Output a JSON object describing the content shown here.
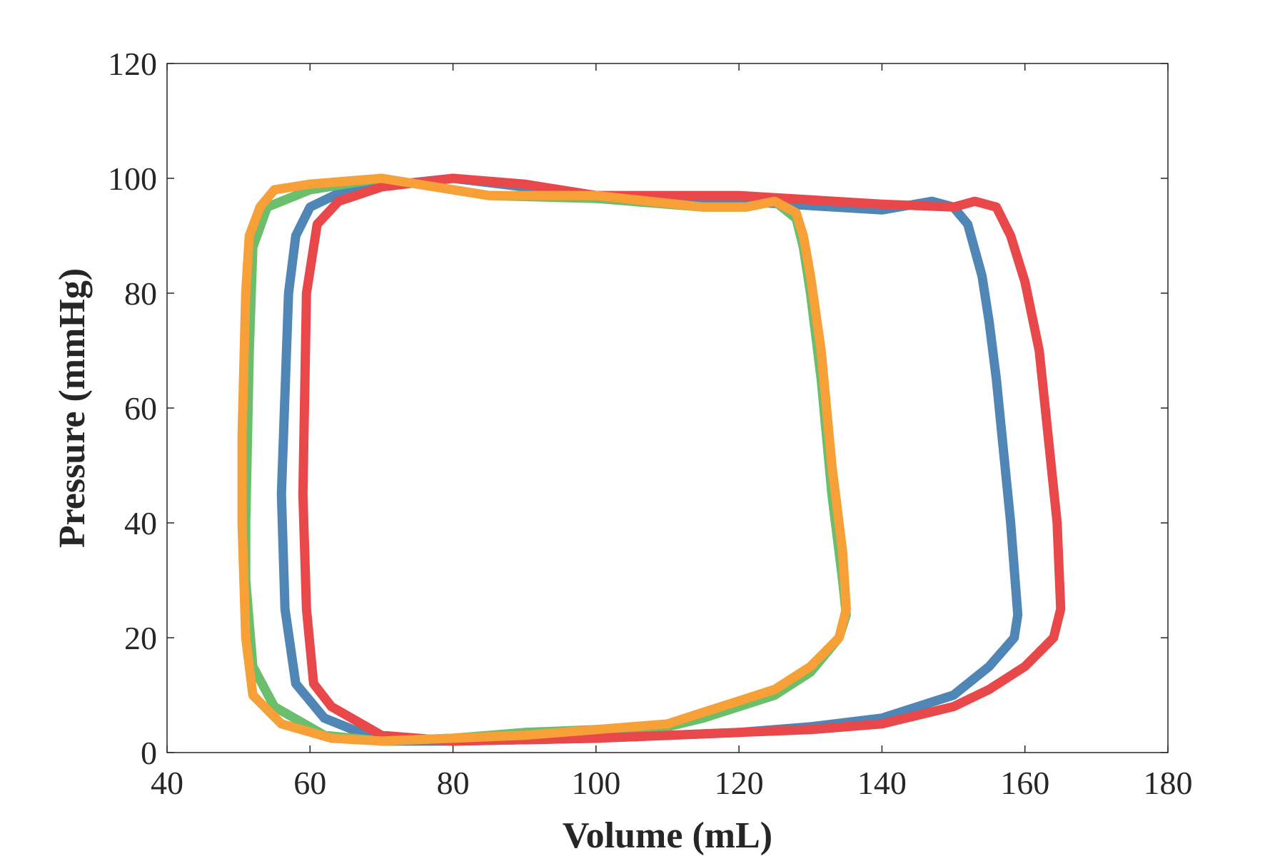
{
  "chart_data": {
    "type": "line",
    "title": "",
    "xlabel": "Volume (mL)",
    "ylabel": "Pressure (mmHg)",
    "xlim": [
      40,
      180
    ],
    "ylim": [
      0,
      120
    ],
    "xticks": [
      40,
      60,
      80,
      100,
      120,
      140,
      160,
      180
    ],
    "yticks": [
      0,
      20,
      40,
      60,
      80,
      100,
      120
    ],
    "grid": false,
    "legend": "none",
    "series": [
      {
        "color": "#4F86B5",
        "points": [
          [
            56,
            45
          ],
          [
            57,
            80
          ],
          [
            58,
            90
          ],
          [
            60,
            95
          ],
          [
            65,
            98
          ],
          [
            80,
            100
          ],
          [
            100,
            97
          ],
          [
            120,
            96
          ],
          [
            140,
            94.5
          ],
          [
            147,
            96
          ],
          [
            150,
            95
          ],
          [
            152,
            92
          ],
          [
            154,
            83
          ],
          [
            155,
            75
          ],
          [
            156,
            65
          ],
          [
            158,
            40
          ],
          [
            159,
            24
          ],
          [
            158.5,
            20
          ],
          [
            155,
            15
          ],
          [
            150,
            10
          ],
          [
            140,
            6
          ],
          [
            130,
            4.5
          ],
          [
            120,
            3.5
          ],
          [
            100,
            2.5
          ],
          [
            80,
            2
          ],
          [
            70,
            2
          ],
          [
            62,
            6
          ],
          [
            58,
            12
          ],
          [
            56.5,
            25
          ],
          [
            56,
            45
          ]
        ]
      },
      {
        "color": "#6BBE6B",
        "points": [
          [
            51,
            40
          ],
          [
            51.5,
            70
          ],
          [
            52,
            88
          ],
          [
            54,
            95
          ],
          [
            60,
            98
          ],
          [
            70,
            100
          ],
          [
            85,
            97
          ],
          [
            100,
            96.5
          ],
          [
            115,
            95
          ],
          [
            121,
            95
          ],
          [
            125,
            96
          ],
          [
            128,
            93
          ],
          [
            129,
            88
          ],
          [
            130,
            80
          ],
          [
            131.5,
            65
          ],
          [
            133,
            45
          ],
          [
            134.5,
            30
          ],
          [
            135,
            24
          ],
          [
            134,
            20
          ],
          [
            130,
            14
          ],
          [
            125,
            10
          ],
          [
            115,
            6
          ],
          [
            110,
            4.5
          ],
          [
            100,
            4
          ],
          [
            90,
            3.5
          ],
          [
            80,
            2.5
          ],
          [
            70,
            2
          ],
          [
            62,
            3
          ],
          [
            55,
            8
          ],
          [
            52,
            15
          ],
          [
            51,
            30
          ],
          [
            51,
            40
          ]
        ]
      },
      {
        "color": "#E8484A",
        "points": [
          [
            59,
            45
          ],
          [
            59.5,
            80
          ],
          [
            61,
            92
          ],
          [
            64,
            96
          ],
          [
            70,
            98.5
          ],
          [
            80,
            100
          ],
          [
            90,
            99
          ],
          [
            100,
            97
          ],
          [
            120,
            97
          ],
          [
            140,
            95.5
          ],
          [
            150,
            95
          ],
          [
            153,
            96
          ],
          [
            156,
            95
          ],
          [
            158,
            90
          ],
          [
            160,
            82
          ],
          [
            162,
            70
          ],
          [
            163,
            58
          ],
          [
            164.5,
            40
          ],
          [
            165,
            25
          ],
          [
            164,
            20
          ],
          [
            160,
            15
          ],
          [
            155,
            11
          ],
          [
            150,
            8
          ],
          [
            140,
            5
          ],
          [
            130,
            4
          ],
          [
            120,
            3.5
          ],
          [
            100,
            2.5
          ],
          [
            80,
            2
          ],
          [
            70,
            3
          ],
          [
            63,
            8
          ],
          [
            60.5,
            12
          ],
          [
            59.5,
            25
          ],
          [
            59,
            45
          ]
        ]
      },
      {
        "color": "#F7A037",
        "points": [
          [
            50.5,
            55
          ],
          [
            51,
            80
          ],
          [
            51.5,
            90
          ],
          [
            53,
            95
          ],
          [
            55,
            98
          ],
          [
            60,
            99
          ],
          [
            70,
            100
          ],
          [
            80,
            98
          ],
          [
            85,
            97
          ],
          [
            100,
            97
          ],
          [
            115,
            95
          ],
          [
            121,
            95
          ],
          [
            125,
            96
          ],
          [
            128,
            94
          ],
          [
            129,
            90
          ],
          [
            130,
            83
          ],
          [
            131.5,
            70
          ],
          [
            133,
            50
          ],
          [
            134.5,
            35
          ],
          [
            135,
            25
          ],
          [
            134,
            20
          ],
          [
            130,
            15
          ],
          [
            125,
            11
          ],
          [
            115,
            7
          ],
          [
            110,
            5
          ],
          [
            100,
            4
          ],
          [
            90,
            3
          ],
          [
            80,
            2.5
          ],
          [
            70,
            2
          ],
          [
            63,
            2.5
          ],
          [
            56,
            5
          ],
          [
            52,
            10
          ],
          [
            51,
            20
          ],
          [
            50.5,
            40
          ],
          [
            50.5,
            55
          ]
        ]
      }
    ]
  }
}
